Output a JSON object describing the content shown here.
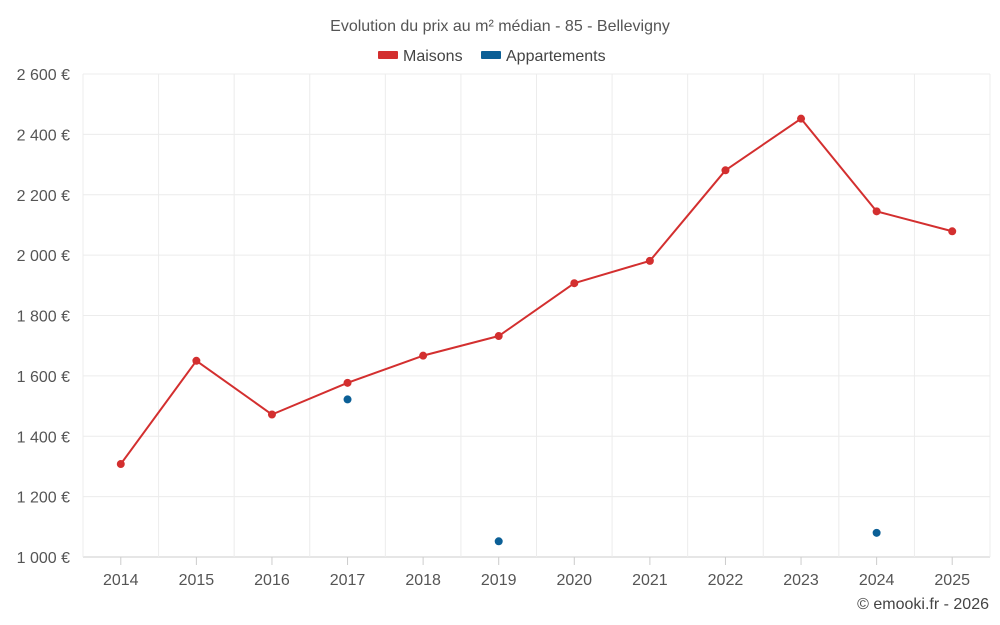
{
  "chart_data": {
    "type": "line",
    "title": "Evolution du prix au m² médian - 85 - Bellevigny",
    "categories": [
      "2014",
      "2015",
      "2016",
      "2017",
      "2018",
      "2019",
      "2020",
      "2021",
      "2022",
      "2023",
      "2024",
      "2025"
    ],
    "y_ticks": [
      "1 000 €",
      "1 200 €",
      "1 400 €",
      "1 600 €",
      "1 800 €",
      "2 000 €",
      "2 200 €",
      "2 400 €",
      "2 600 €"
    ],
    "ylim": [
      1000,
      2600
    ],
    "series": [
      {
        "name": "Maisons",
        "color": "#d32f2f",
        "line": true,
        "values": [
          1308,
          1650,
          1472,
          1577,
          1667,
          1732,
          1907,
          1981,
          2281,
          2452,
          2145,
          2079
        ]
      },
      {
        "name": "Appartements",
        "color": "#0b5f96",
        "line": false,
        "values": [
          null,
          null,
          null,
          1522,
          null,
          1052,
          null,
          null,
          null,
          null,
          1080,
          null
        ]
      }
    ],
    "legend_position": "top-center",
    "credit": "© emooki.fr - 2026"
  }
}
